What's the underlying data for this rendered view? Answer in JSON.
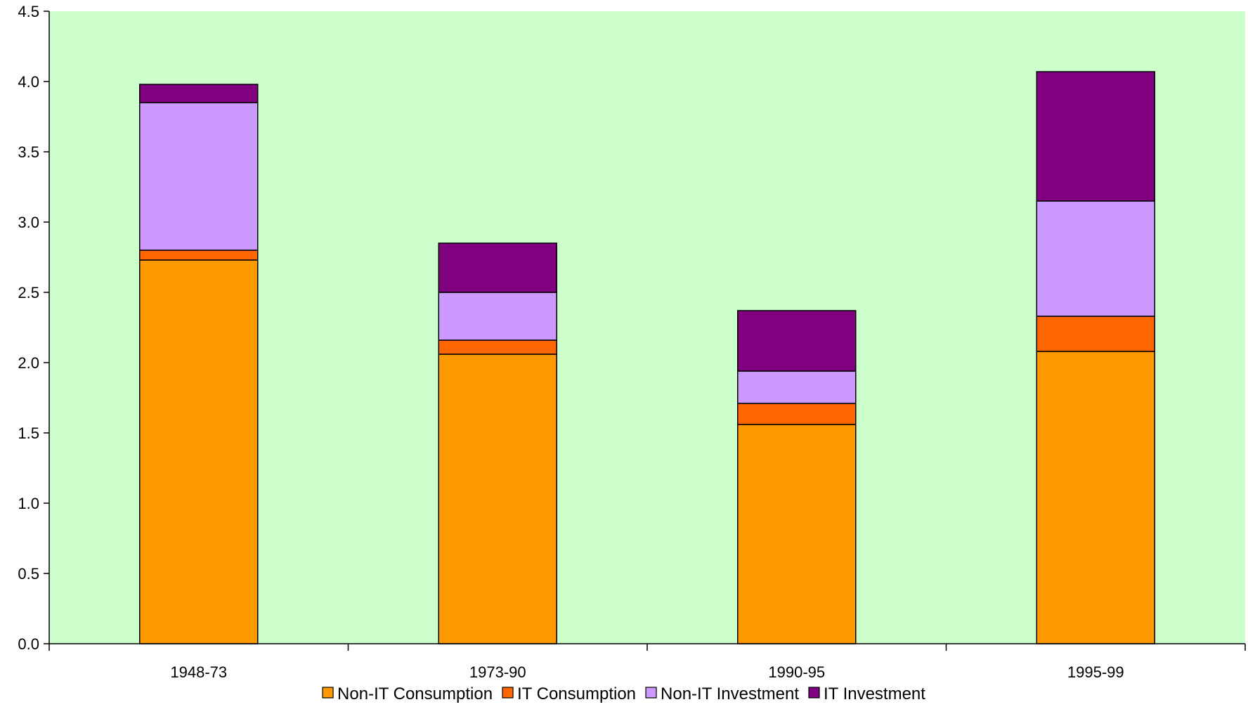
{
  "chart_data": {
    "type": "bar",
    "stacked": true,
    "title": "",
    "xlabel": "",
    "ylabel": "",
    "categories": [
      "1948-73",
      "1973-90",
      "1990-95",
      "1995-99"
    ],
    "series": [
      {
        "name": "Non-IT Consumption",
        "color": "#FF9900",
        "values": [
          2.73,
          2.06,
          1.56,
          2.08
        ]
      },
      {
        "name": "IT Consumption",
        "color": "#FF6600",
        "values": [
          0.07,
          0.1,
          0.15,
          0.25
        ]
      },
      {
        "name": "Non-IT Investment",
        "color": "#CC99FF",
        "values": [
          1.05,
          0.34,
          0.23,
          0.82
        ]
      },
      {
        "name": "IT Investment",
        "color": "#800080",
        "values": [
          0.13,
          0.35,
          0.43,
          0.92
        ]
      }
    ],
    "ylim": [
      0,
      4.5
    ],
    "yticks": [
      "0.0",
      "0.5",
      "1.0",
      "1.5",
      "2.0",
      "2.5",
      "3.0",
      "3.5",
      "4.0",
      "4.5"
    ],
    "grid": false,
    "plot_background": "#CCFFCC",
    "legend_position": "bottom"
  }
}
